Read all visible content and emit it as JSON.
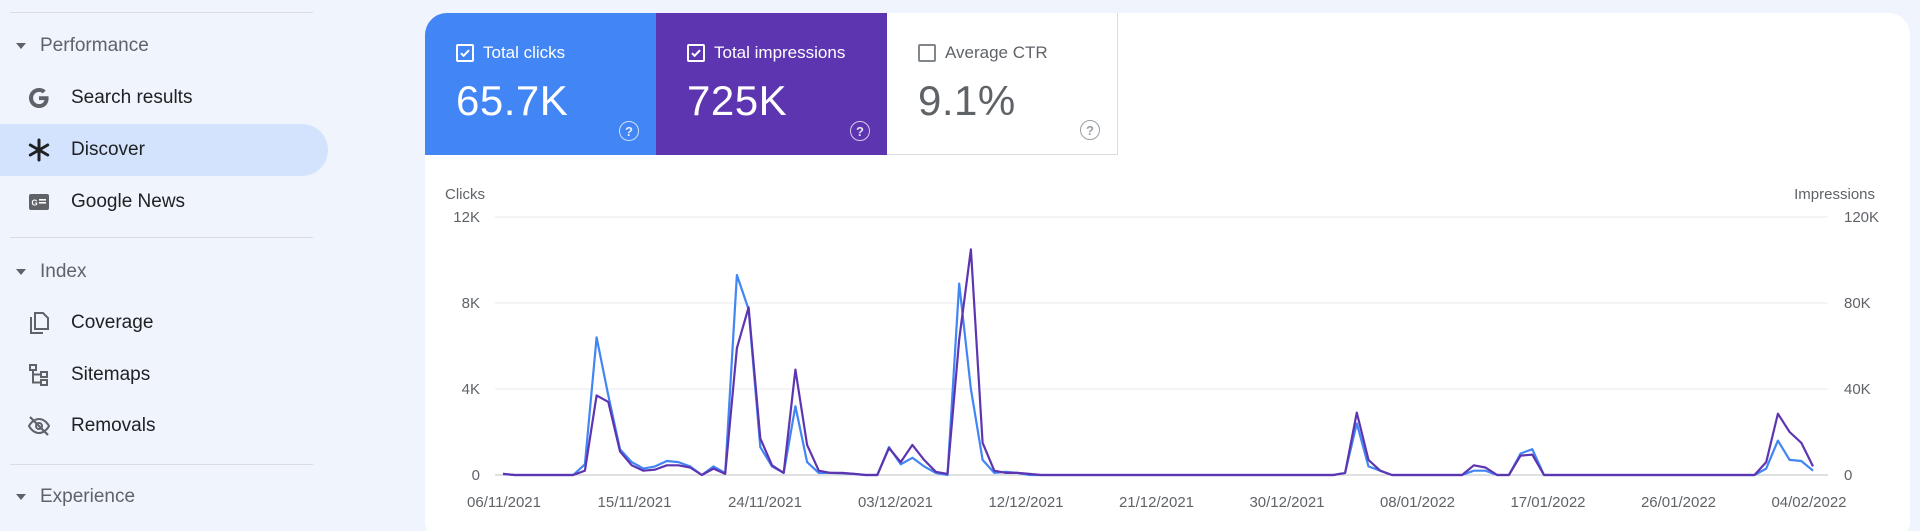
{
  "sidebar": {
    "sections": [
      {
        "label": "Performance"
      },
      {
        "label": "Index"
      },
      {
        "label": "Experience"
      }
    ],
    "items": [
      {
        "label": "Search results",
        "icon": "google-g-icon"
      },
      {
        "label": "Discover",
        "icon": "asterisk-icon"
      },
      {
        "label": "Google News",
        "icon": "news-icon"
      },
      {
        "label": "Coverage",
        "icon": "pages-icon"
      },
      {
        "label": "Sitemaps",
        "icon": "sitemap-icon"
      },
      {
        "label": "Removals",
        "icon": "eye-off-icon"
      }
    ]
  },
  "metrics": {
    "clicks": {
      "label": "Total clicks",
      "value": "65.7K",
      "checked": true,
      "color": "#4285f4"
    },
    "impressions": {
      "label": "Total impressions",
      "value": "725K",
      "checked": true,
      "color": "#5e35b1"
    },
    "ctr": {
      "label": "Average CTR",
      "value": "9.1%",
      "checked": false
    }
  },
  "chart_data": {
    "type": "line",
    "y_left_label": "Clicks",
    "y_right_label": "Impressions",
    "y_left_ticks": [
      "12K",
      "8K",
      "4K",
      "0"
    ],
    "y_right_ticks": [
      "120K",
      "80K",
      "40K",
      "0"
    ],
    "y_left_range": [
      0,
      12000
    ],
    "y_right_range": [
      0,
      120000
    ],
    "x_ticks": [
      "06/11/2021",
      "15/11/2021",
      "24/11/2021",
      "03/12/2021",
      "12/12/2021",
      "21/12/2021",
      "30/12/2021",
      "08/01/2022",
      "17/01/2022",
      "26/01/2022",
      "04/02/2022"
    ],
    "grid": true,
    "series": [
      {
        "name": "Clicks",
        "axis": "left",
        "color": "#4285f4",
        "values": [
          50,
          0,
          0,
          0,
          0,
          0,
          0,
          500,
          6400,
          3700,
          1200,
          600,
          300,
          400,
          650,
          600,
          400,
          0,
          400,
          100,
          9300,
          7700,
          1300,
          400,
          100,
          3200,
          600,
          100,
          100,
          80,
          50,
          0,
          0,
          1300,
          500,
          800,
          400,
          100,
          0,
          8900,
          4000,
          700,
          100,
          150,
          100,
          0,
          0,
          0,
          0,
          0,
          0,
          0,
          0,
          0,
          0,
          0,
          0,
          0,
          0,
          0,
          0,
          0,
          0,
          0,
          0,
          0,
          0,
          0,
          0,
          0,
          0,
          0,
          100,
          2400,
          400,
          200,
          0,
          0,
          0,
          0,
          0,
          0,
          0,
          200,
          200,
          0,
          0,
          1000,
          1200,
          0,
          0,
          0,
          0,
          0,
          0,
          0,
          0,
          0,
          0,
          0,
          0,
          0,
          0,
          0,
          0,
          0,
          0,
          0,
          300,
          1600,
          700,
          650,
          200
        ]
      },
      {
        "name": "Impressions",
        "axis": "right",
        "color": "#5e35b1",
        "values": [
          500,
          0,
          0,
          0,
          0,
          0,
          0,
          2000,
          37000,
          34000,
          11000,
          4500,
          2000,
          2500,
          4500,
          4500,
          3500,
          0,
          3000,
          500,
          59000,
          78000,
          17000,
          4500,
          1000,
          49000,
          14000,
          2000,
          1000,
          1000,
          500,
          0,
          0,
          12500,
          6000,
          14000,
          7000,
          1500,
          500,
          63000,
          105000,
          15000,
          2000,
          1000,
          1000,
          500,
          0,
          0,
          0,
          0,
          0,
          0,
          0,
          0,
          0,
          0,
          0,
          0,
          0,
          0,
          0,
          0,
          0,
          0,
          0,
          0,
          0,
          0,
          0,
          0,
          0,
          0,
          1000,
          29000,
          7000,
          2000,
          0,
          0,
          0,
          0,
          0,
          0,
          0,
          4500,
          3500,
          0,
          0,
          9000,
          9500,
          0,
          0,
          0,
          0,
          0,
          0,
          0,
          0,
          0,
          0,
          0,
          0,
          0,
          0,
          0,
          0,
          0,
          0,
          0,
          6000,
          28500,
          20000,
          15000,
          4000
        ]
      }
    ]
  }
}
